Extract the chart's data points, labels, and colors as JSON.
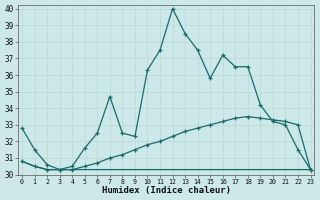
{
  "xlabel": "Humidex (Indice chaleur)",
  "bg_color": "#cce8e8",
  "line_color": "#1a6b6b",
  "grid_color": "#b8d8d8",
  "ylim": [
    30,
    40.2
  ],
  "xlim": [
    -0.3,
    23.3
  ],
  "yticks": [
    30,
    31,
    32,
    33,
    34,
    35,
    36,
    37,
    38,
    39,
    40
  ],
  "xticks": [
    0,
    1,
    2,
    3,
    4,
    5,
    6,
    7,
    8,
    9,
    10,
    11,
    12,
    13,
    14,
    15,
    16,
    17,
    18,
    19,
    20,
    21,
    22,
    23
  ],
  "line1_x": [
    0,
    1,
    2,
    3,
    4,
    5,
    6,
    7,
    8,
    9,
    10,
    11,
    12,
    13,
    14,
    15,
    16,
    17,
    18,
    19,
    20,
    21,
    22,
    23
  ],
  "line1_y": [
    32.8,
    31.5,
    30.6,
    30.3,
    30.5,
    31.6,
    32.5,
    34.7,
    32.5,
    32.3,
    36.3,
    37.5,
    40.0,
    38.5,
    37.5,
    35.8,
    37.2,
    36.5,
    36.5,
    34.2,
    33.2,
    33.0,
    31.5,
    30.3
  ],
  "line2_x": [
    0,
    1,
    2,
    3,
    4,
    5,
    6,
    7,
    8,
    9,
    10,
    11,
    12,
    13,
    14,
    15,
    16,
    17,
    18,
    19,
    20,
    21,
    22,
    23
  ],
  "line2_y": [
    30.8,
    30.5,
    30.3,
    30.3,
    30.3,
    30.5,
    30.7,
    31.0,
    31.2,
    31.5,
    31.8,
    32.0,
    32.3,
    32.6,
    32.8,
    33.0,
    33.2,
    33.4,
    33.5,
    33.4,
    33.3,
    33.2,
    33.0,
    30.3
  ],
  "line3_x": [
    0,
    1,
    2,
    3,
    4,
    5,
    6,
    7,
    8,
    9,
    10,
    11,
    12,
    13,
    14,
    15,
    16,
    17,
    18,
    19,
    20,
    21,
    22,
    23
  ],
  "line3_y": [
    30.8,
    30.5,
    30.3,
    30.3,
    30.3,
    30.3,
    30.3,
    30.3,
    30.3,
    30.3,
    30.3,
    30.3,
    30.3,
    30.3,
    30.3,
    30.3,
    30.3,
    30.3,
    30.3,
    30.3,
    30.3,
    30.3,
    30.3,
    30.3
  ],
  "ytick_fontsize": 5.5,
  "xtick_fontsize": 4.8,
  "xlabel_fontsize": 6.5
}
